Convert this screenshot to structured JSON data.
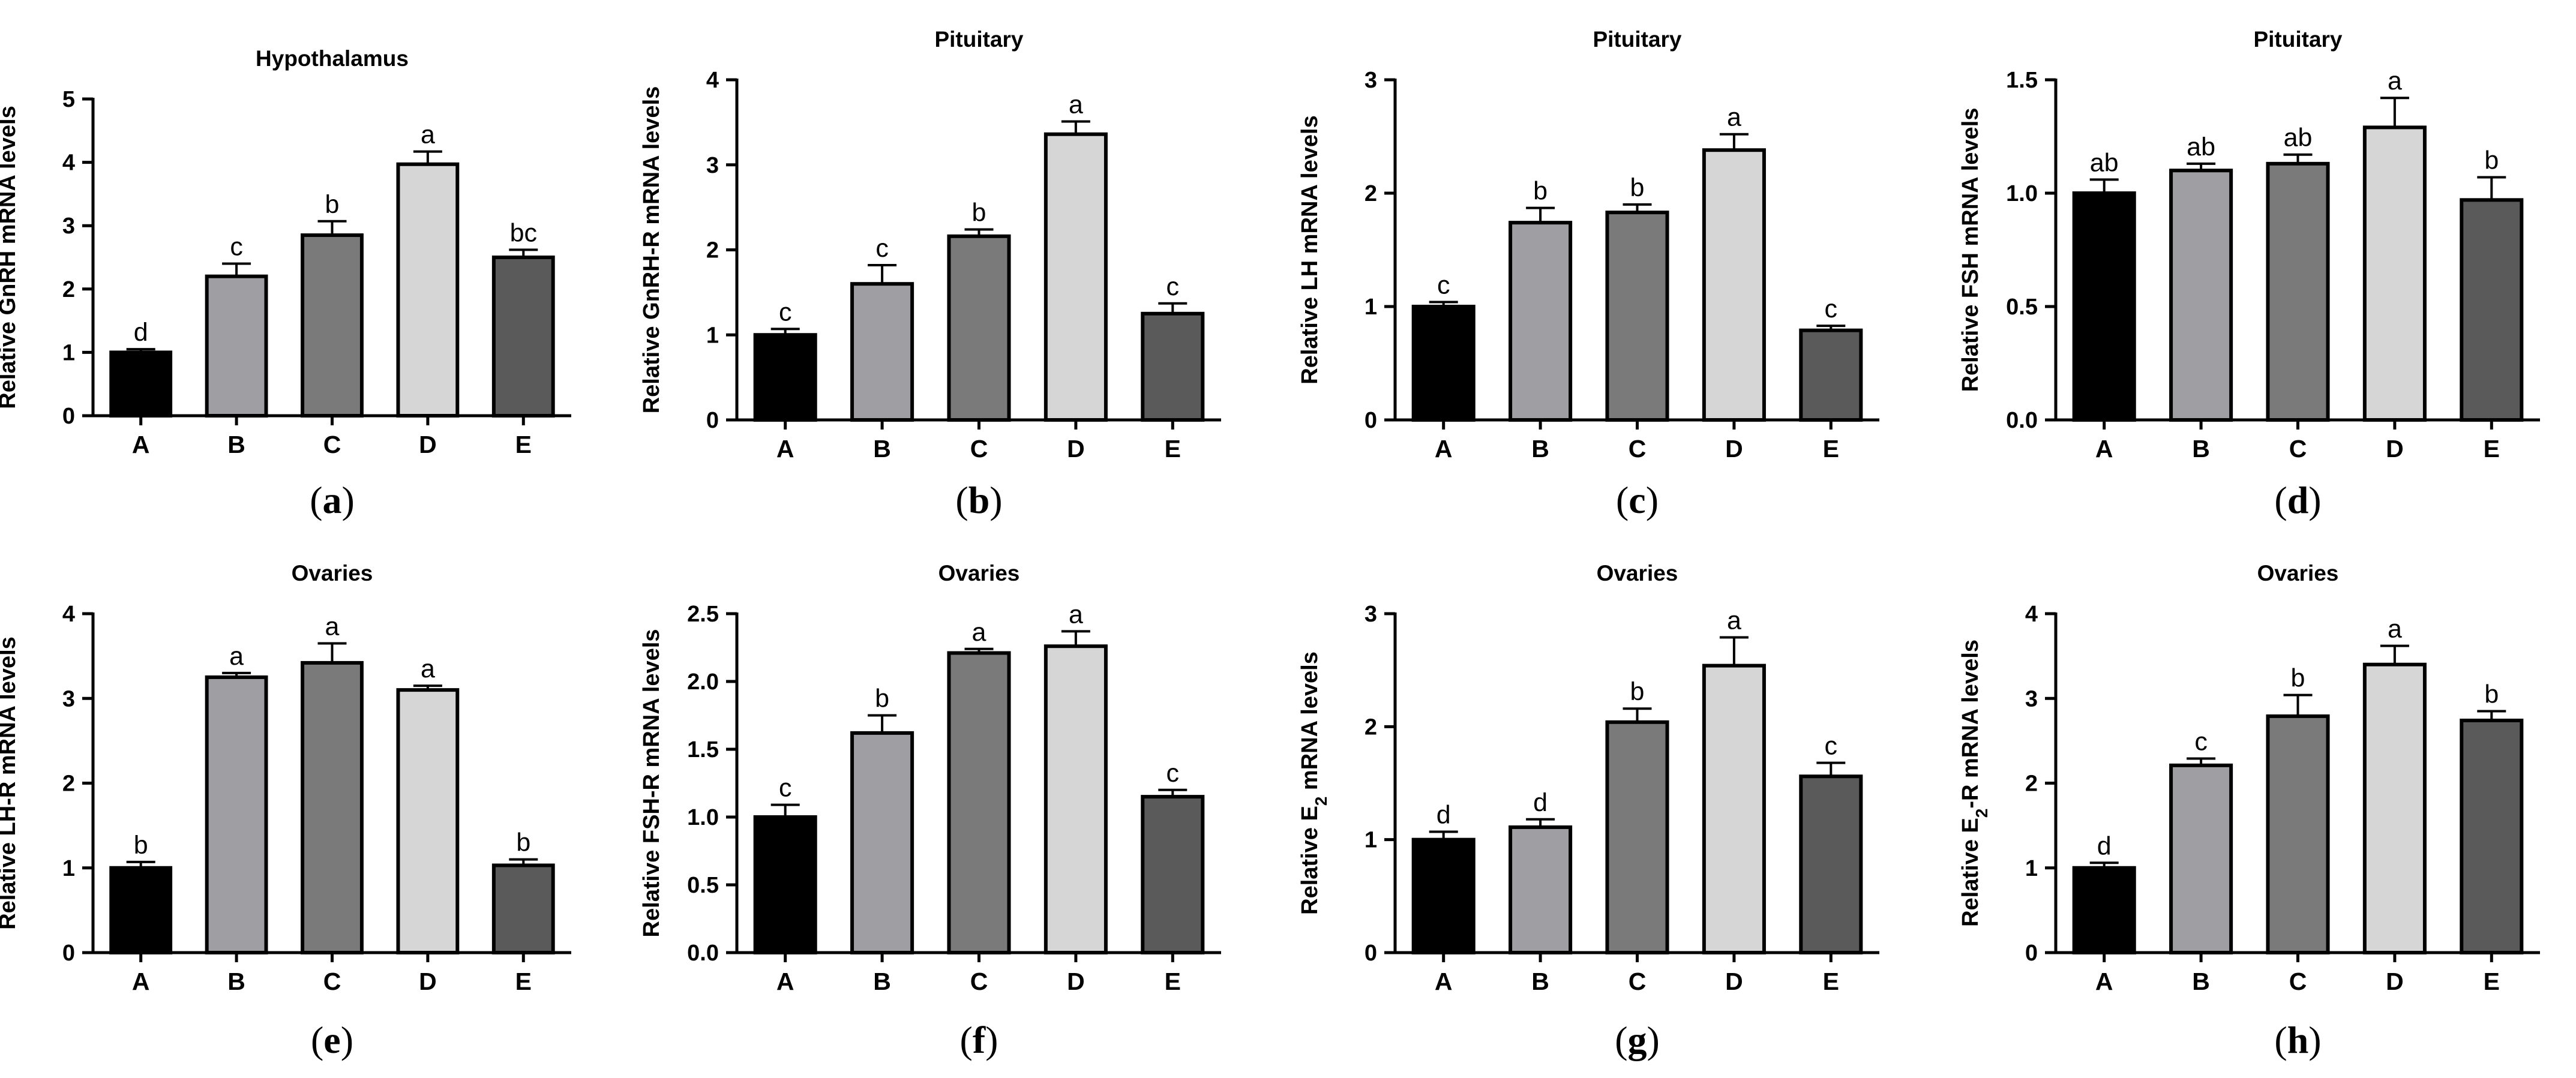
{
  "chart_data": [
    {
      "type": "bar",
      "panel": "a",
      "title": "Hypothalamus",
      "ylabel": "Relative GnRH mRNA levels",
      "ylim": [
        0,
        5
      ],
      "yticks": [
        "0",
        "1",
        "2",
        "3",
        "4",
        "5"
      ],
      "categories": [
        "A",
        "B",
        "C",
        "D",
        "E"
      ],
      "values": [
        1.0,
        2.2,
        2.85,
        3.97,
        2.5
      ],
      "errors": [
        0.05,
        0.2,
        0.22,
        0.2,
        0.12
      ],
      "significance": [
        "d",
        "c",
        "b",
        "a",
        "bc"
      ]
    },
    {
      "type": "bar",
      "panel": "b",
      "title": "Pituitary",
      "ylabel": "Relative GnRH-R mRNA levels",
      "ylim": [
        0,
        4
      ],
      "yticks": [
        "0",
        "1",
        "2",
        "3",
        "4"
      ],
      "categories": [
        "A",
        "B",
        "C",
        "D",
        "E"
      ],
      "values": [
        1.0,
        1.6,
        2.16,
        3.36,
        1.25
      ],
      "errors": [
        0.07,
        0.22,
        0.08,
        0.15,
        0.12
      ],
      "significance": [
        "c",
        "c",
        "b",
        "a",
        "c"
      ]
    },
    {
      "type": "bar",
      "panel": "c",
      "title": "Pituitary",
      "ylabel": "Relative LH mRNA levels",
      "ylim": [
        0,
        3
      ],
      "yticks": [
        "0",
        "1",
        "2",
        "3"
      ],
      "categories": [
        "A",
        "B",
        "C",
        "D",
        "E"
      ],
      "values": [
        1.0,
        1.74,
        1.83,
        2.38,
        0.79
      ],
      "errors": [
        0.04,
        0.13,
        0.07,
        0.14,
        0.04
      ],
      "significance": [
        "c",
        "b",
        "b",
        "a",
        "c"
      ]
    },
    {
      "type": "bar",
      "panel": "d",
      "title": "Pituitary",
      "ylabel": "Relative FSH mRNA levels",
      "ylim": [
        0,
        1.5
      ],
      "yticks": [
        "0.0",
        "0.5",
        "1.0",
        "1.5"
      ],
      "categories": [
        "A",
        "B",
        "C",
        "D",
        "E"
      ],
      "values": [
        1.0,
        1.1,
        1.13,
        1.29,
        0.97
      ],
      "errors": [
        0.06,
        0.03,
        0.04,
        0.13,
        0.1
      ],
      "significance": [
        "ab",
        "ab",
        "ab",
        "a",
        "b"
      ]
    },
    {
      "type": "bar",
      "panel": "e",
      "title": "Ovaries",
      "ylabel": "Relative LH-R mRNA levels",
      "ylim": [
        0,
        4
      ],
      "yticks": [
        "0",
        "1",
        "2",
        "3",
        "4"
      ],
      "categories": [
        "A",
        "B",
        "C",
        "D",
        "E"
      ],
      "values": [
        1.0,
        3.25,
        3.42,
        3.1,
        1.03
      ],
      "errors": [
        0.07,
        0.05,
        0.23,
        0.05,
        0.07
      ],
      "significance": [
        "b",
        "a",
        "a",
        "a",
        "b"
      ]
    },
    {
      "type": "bar",
      "panel": "f",
      "title": "Ovaries",
      "ylabel": "Relative FSH-R mRNA levels",
      "ylim": [
        0,
        2.5
      ],
      "yticks": [
        "0.0",
        "0.5",
        "1.0",
        "1.5",
        "2.0",
        "2.5"
      ],
      "categories": [
        "A",
        "B",
        "C",
        "D",
        "E"
      ],
      "values": [
        1.0,
        1.62,
        2.21,
        2.26,
        1.15
      ],
      "errors": [
        0.09,
        0.13,
        0.03,
        0.11,
        0.05
      ],
      "significance": [
        "c",
        "b",
        "a",
        "a",
        "c"
      ]
    },
    {
      "type": "bar",
      "panel": "g",
      "title": "Ovaries",
      "ylabel_prefix": "Relative E",
      "ylabel_sub": "2",
      "ylabel_suffix": " mRNA levels",
      "ylim": [
        0,
        3
      ],
      "yticks": [
        "0",
        "1",
        "2",
        "3"
      ],
      "categories": [
        "A",
        "B",
        "C",
        "D",
        "E"
      ],
      "values": [
        1.0,
        1.11,
        2.04,
        2.54,
        1.56
      ],
      "errors": [
        0.07,
        0.07,
        0.12,
        0.25,
        0.12
      ],
      "significance": [
        "d",
        "d",
        "b",
        "a",
        "c"
      ]
    },
    {
      "type": "bar",
      "panel": "h",
      "title": "Ovaries",
      "ylabel_prefix": "Relative E",
      "ylabel_sub": "2",
      "ylabel_suffix": "-R mRNA levels",
      "ylim": [
        0,
        4
      ],
      "yticks": [
        "0",
        "1",
        "2",
        "3",
        "4"
      ],
      "categories": [
        "A",
        "B",
        "C",
        "D",
        "E"
      ],
      "values": [
        1.0,
        2.21,
        2.79,
        3.4,
        2.74
      ],
      "errors": [
        0.06,
        0.08,
        0.25,
        0.22,
        0.11
      ],
      "significance": [
        "d",
        "c",
        "b",
        "a",
        "b"
      ]
    }
  ],
  "panel_labels": [
    {
      "open": "(",
      "letter": "a",
      "close": ")"
    },
    {
      "open": "(",
      "letter": "b",
      "close": ")"
    },
    {
      "open": "(",
      "letter": "c",
      "close": ")"
    },
    {
      "open": "(",
      "letter": "d",
      "close": ")"
    },
    {
      "open": "(",
      "letter": "e",
      "close": ")"
    },
    {
      "open": "(",
      "letter": "f",
      "close": ")"
    },
    {
      "open": "(",
      "letter": "g",
      "close": ")"
    },
    {
      "open": "(",
      "letter": "h",
      "close": ")"
    }
  ],
  "colors": {
    "bar_fills": [
      "#000000",
      "#9e9ea3",
      "#7a7a7a",
      "#d6d6d6",
      "#5a5a5a"
    ],
    "outline": "#000000"
  }
}
